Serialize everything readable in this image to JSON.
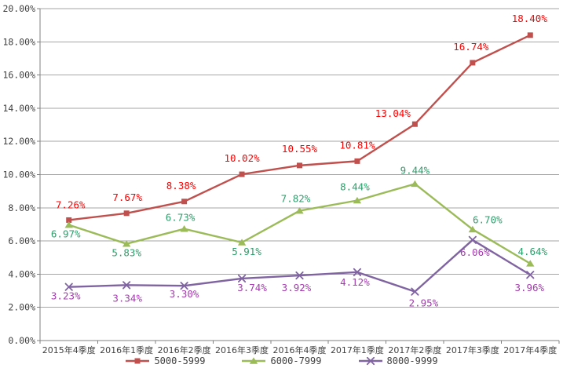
{
  "chart_data": {
    "type": "line",
    "title": "",
    "categories": [
      "2015年4季度",
      "2016年1季度",
      "2016年2季度",
      "2016年3季度",
      "2016年4季度",
      "2017年1季度",
      "2017年2季度",
      "2017年3季度",
      "2017年4季度"
    ],
    "series": [
      {
        "name": "5000-5999",
        "marker": "square",
        "line_color": "#C0504D",
        "label_color": "#FF0000",
        "values": [
          7.26,
          7.67,
          8.38,
          10.02,
          10.55,
          10.81,
          13.04,
          16.74,
          18.4
        ],
        "labels": [
          "7.26%",
          "7.67%",
          "8.38%",
          "10.02%",
          "10.55%",
          "10.81%",
          "13.04%",
          "16.74%",
          "18.40%"
        ],
        "label_offsets": [
          [
            2,
            -19
          ],
          [
            1,
            -20
          ],
          [
            -4,
            -20
          ],
          [
            0,
            -20
          ],
          [
            0,
            -21
          ],
          [
            0,
            -20
          ],
          [
            -28,
            -13
          ],
          [
            -2,
            -20
          ],
          [
            -1,
            -21
          ]
        ]
      },
      {
        "name": "6000-7999",
        "marker": "triangle",
        "line_color": "#9BBB59",
        "label_color": "#2E9E6B",
        "values": [
          6.97,
          5.83,
          6.73,
          5.91,
          7.82,
          8.44,
          9.44,
          6.7,
          4.64
        ],
        "labels": [
          "6.97%",
          "5.83%",
          "6.73%",
          "5.91%",
          "7.82%",
          "8.44%",
          "9.44%",
          "6.70%",
          "4.64%"
        ],
        "label_offsets": [
          [
            -4,
            12
          ],
          [
            0,
            12
          ],
          [
            -5,
            -14
          ],
          [
            6,
            12
          ],
          [
            -5,
            -15
          ],
          [
            -3,
            -17
          ],
          [
            0,
            -17
          ],
          [
            19,
            -12
          ],
          [
            3,
            -15
          ]
        ]
      },
      {
        "name": "8000-9999",
        "marker": "x",
        "line_color": "#8064A2",
        "label_color": "#A53CAF",
        "values": [
          3.23,
          3.34,
          3.3,
          3.74,
          3.92,
          4.12,
          2.95,
          6.06,
          3.96
        ],
        "labels": [
          "3.23%",
          "3.34%",
          "3.30%",
          "3.74%",
          "3.92%",
          "4.12%",
          "2.95%",
          "6.06%",
          "3.96%"
        ],
        "label_offsets": [
          [
            -4,
            12
          ],
          [
            1,
            17
          ],
          [
            0,
            11
          ],
          [
            13,
            12
          ],
          [
            -4,
            16
          ],
          [
            -3,
            13
          ],
          [
            11,
            15
          ],
          [
            3,
            16
          ],
          [
            -1,
            17
          ]
        ]
      }
    ],
    "y_axis": {
      "min": 0,
      "max": 20,
      "step": 2,
      "tick_labels": [
        "0.00%",
        "2.00%",
        "4.00%",
        "6.00%",
        "8.00%",
        "10.00%",
        "12.00%",
        "14.00%",
        "16.00%",
        "18.00%",
        "20.00%"
      ]
    },
    "grid": true,
    "legend_position": "bottom",
    "colors": {
      "gridline": "#A6A6A6",
      "axis": "#808080",
      "tick_text": "#3F3F3F",
      "background": "#FFFFFF"
    }
  }
}
